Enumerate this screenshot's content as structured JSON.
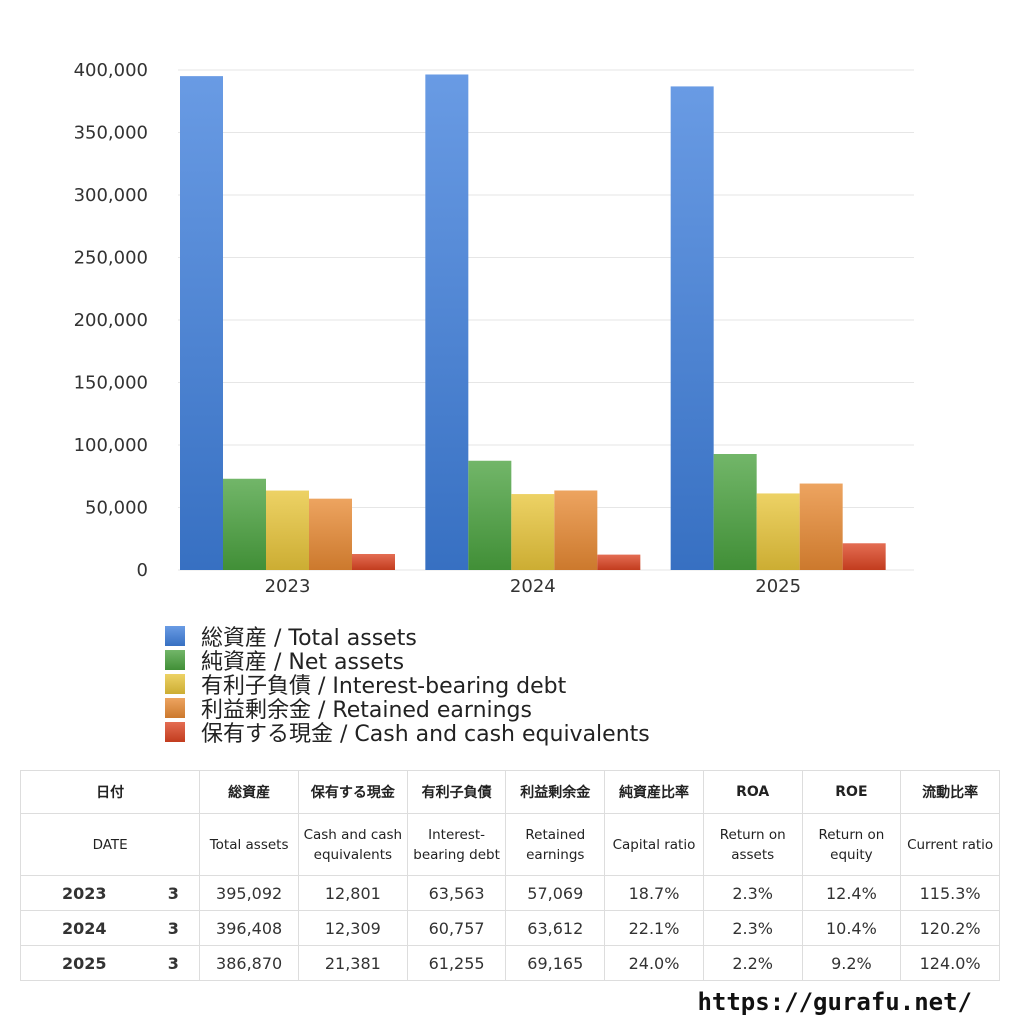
{
  "chart_data": {
    "type": "bar",
    "categories": [
      "2023",
      "2024",
      "2025"
    ],
    "series": [
      {
        "name": "総資産 / Total assets",
        "values": [
          395092,
          396408,
          386870
        ],
        "color": "#3f7fdc"
      },
      {
        "name": "純資産 / Net assets",
        "values": [
          73000,
          87400,
          92800
        ],
        "color": "#4aa23f"
      },
      {
        "name": "有利子負債 / Interest-bearing debt",
        "values": [
          63563,
          60757,
          61255
        ],
        "color": "#e8c53a"
      },
      {
        "name": "利益剰余金 / Retained earnings",
        "values": [
          57069,
          63612,
          69165
        ],
        "color": "#e88a33"
      },
      {
        "name": "保有する現金 /  Cash and cash equivalents",
        "values": [
          12801,
          12309,
          21381
        ],
        "color": "#dd4422"
      }
    ],
    "yticks": [
      "0",
      "50,000",
      "100,000",
      "150,000",
      "200,000",
      "250,000",
      "300,000",
      "350,000",
      "400,000"
    ],
    "ylim": [
      0,
      400000
    ],
    "grid": true,
    "legend": "bottom"
  },
  "table": {
    "header_jp": [
      "日付",
      "総資産",
      "保有する現金",
      "有利子負債",
      "利益剰余金",
      "純資産比率",
      "ROA",
      "ROE",
      "流動比率"
    ],
    "header_en": [
      "DATE",
      "Total assets",
      "Cash and cash equivalents",
      "Interest-bearing debt",
      "Retained earnings",
      "Capital ratio",
      "Return on assets",
      "Return on equity",
      "Current ratio"
    ],
    "rows": [
      {
        "year": "2023",
        "month": "3",
        "cells": [
          "395,092",
          "12,801",
          "63,563",
          "57,069",
          "18.7%",
          "2.3%",
          "12.4%",
          "115.3%"
        ]
      },
      {
        "year": "2024",
        "month": "3",
        "cells": [
          "396,408",
          "12,309",
          "60,757",
          "63,612",
          "22.1%",
          "2.3%",
          "10.4%",
          "120.2%"
        ]
      },
      {
        "year": "2025",
        "month": "3",
        "cells": [
          "386,870",
          "21,381",
          "61,255",
          "69,165",
          "24.0%",
          "2.2%",
          "9.2%",
          "124.0%"
        ]
      }
    ]
  },
  "footer": {
    "url": "https://gurafu.net/"
  }
}
